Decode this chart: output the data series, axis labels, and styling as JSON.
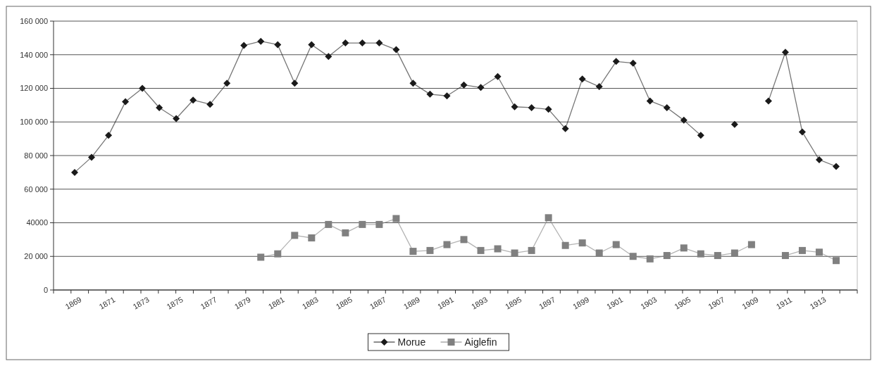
{
  "chart_data": {
    "type": "line",
    "categories": [
      "1869",
      null,
      "1871",
      null,
      "1873",
      null,
      "1875",
      null,
      "1877",
      null,
      "1879",
      null,
      "1881",
      null,
      "1883",
      null,
      "1885",
      null,
      "1887",
      null,
      "1889",
      null,
      "1891",
      null,
      "1893",
      null,
      "1895",
      null,
      "1897",
      null,
      "1899",
      null,
      "1901",
      null,
      "1903",
      null,
      "1905",
      null,
      "1907",
      null,
      "1909",
      null,
      "1911",
      null,
      "1913",
      null
    ],
    "series": [
      {
        "name": "Morue",
        "color": "#1a1a1a",
        "marker": "diamond",
        "values": [
          70000,
          79000,
          92000,
          112000,
          120000,
          108500,
          102000,
          113000,
          110500,
          123000,
          145500,
          148000,
          146000,
          123000,
          146000,
          139000,
          147000,
          147000,
          147000,
          143000,
          123000,
          116500,
          115500,
          122000,
          120500,
          127000,
          109000,
          108500,
          107500,
          96000,
          125500,
          121000,
          136000,
          135000,
          112500,
          108500,
          101000,
          92000,
          null,
          98500,
          null,
          112500,
          141500,
          94000,
          77500,
          73500
        ]
      },
      {
        "name": "Aiglefin",
        "color": "#808080",
        "marker": "square",
        "values": [
          null,
          null,
          null,
          null,
          null,
          null,
          null,
          null,
          null,
          null,
          null,
          19500,
          21500,
          32500,
          31000,
          39000,
          34000,
          39000,
          39000,
          42500,
          23000,
          23500,
          27000,
          30000,
          23500,
          24500,
          22000,
          23500,
          43000,
          26500,
          28000,
          22000,
          27000,
          20000,
          18500,
          20500,
          25000,
          21500,
          20500,
          22000,
          27000,
          null,
          20500,
          23500,
          22500,
          17500
        ]
      }
    ],
    "ylim": [
      0,
      160000
    ],
    "yticks": [
      0,
      {
        "value": 20000,
        "label": "20 000"
      },
      40000,
      {
        "value": 60000,
        "label": "60 000"
      },
      {
        "value": 80000,
        "label": "80 000"
      },
      {
        "value": 100000,
        "label": "100 000"
      },
      {
        "value": 120000,
        "label": "120 000"
      },
      {
        "value": 140000,
        "label": "140 000"
      },
      {
        "value": 160000,
        "label": "160 000"
      }
    ],
    "grid": "y",
    "legend": "bottom",
    "line_style": "solid"
  }
}
